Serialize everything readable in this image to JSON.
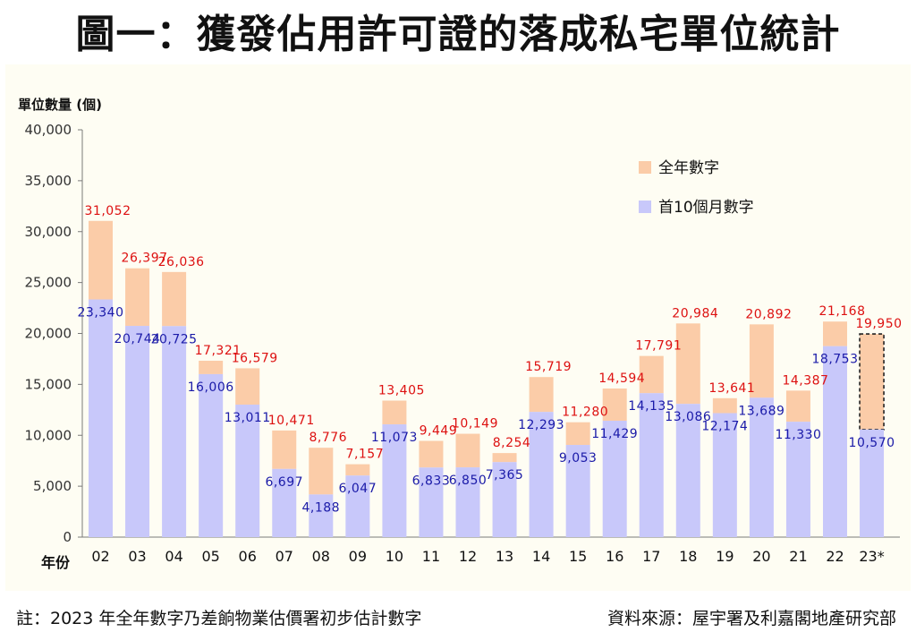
{
  "header": {
    "title": "圖一：獲發佔用許可證的落成私宅單位統計"
  },
  "footer": {
    "note": "註：2023 年全年數字乃差餉物業估價署初步估計數字",
    "source": "資料來源：屋宇署及利嘉閣地產研究部"
  },
  "chart_data": {
    "type": "bar",
    "ylabel": "單位數量 (個)",
    "xlabel": "年份",
    "ylim": [
      0,
      40000
    ],
    "yticks": [
      "0",
      "5,000",
      "10,000",
      "15,000",
      "20,000",
      "25,000",
      "30,000",
      "35,000",
      "40,000"
    ],
    "categories": [
      "02",
      "03",
      "04",
      "05",
      "06",
      "07",
      "08",
      "09",
      "10",
      "11",
      "12",
      "13",
      "14",
      "15",
      "16",
      "17",
      "18",
      "19",
      "20",
      "21",
      "22",
      "23*"
    ],
    "legend_position": "top-right",
    "series": [
      {
        "name": "全年數字",
        "color": "#fbcca8",
        "values": [
          31052,
          26397,
          26036,
          17321,
          16579,
          10471,
          8776,
          7157,
          13405,
          9449,
          10149,
          8254,
          15719,
          11280,
          14594,
          17791,
          20984,
          13641,
          20892,
          14387,
          21168,
          19950
        ],
        "labels": [
          "31,052",
          "26,397",
          "26,036",
          "17,321",
          "16,579",
          "10,471",
          "8,776",
          "7,157",
          "13,405",
          "9,449",
          "10,149",
          "8,254",
          "15,719",
          "11,280",
          "14,594",
          "17,791",
          "20,984",
          "13,641",
          "20,892",
          "14,387",
          "21,168",
          "19,950"
        ],
        "label_color": "#dd1111"
      },
      {
        "name": "首10個月數字",
        "color": "#c8c8fa",
        "values": [
          23340,
          20744,
          20725,
          16006,
          13011,
          6697,
          4188,
          6047,
          11073,
          6833,
          6850,
          7365,
          12293,
          9053,
          11429,
          14135,
          13086,
          12174,
          13689,
          11330,
          18753,
          10570
        ],
        "labels": [
          "23,340",
          "20,744",
          "20,725",
          "16,006",
          "13,011",
          "6,697",
          "4,188",
          "6,047",
          "11,073",
          "6,833",
          "6,850",
          "7,365",
          "12,293",
          "9,053",
          "11,429",
          "14,135",
          "13,086",
          "12,174",
          "13,689",
          "11,330",
          "18,753",
          "10,570"
        ],
        "label_color": "#1a1aa8"
      }
    ],
    "estimate_category": "23*",
    "estimate_style": "dashed-outline"
  }
}
